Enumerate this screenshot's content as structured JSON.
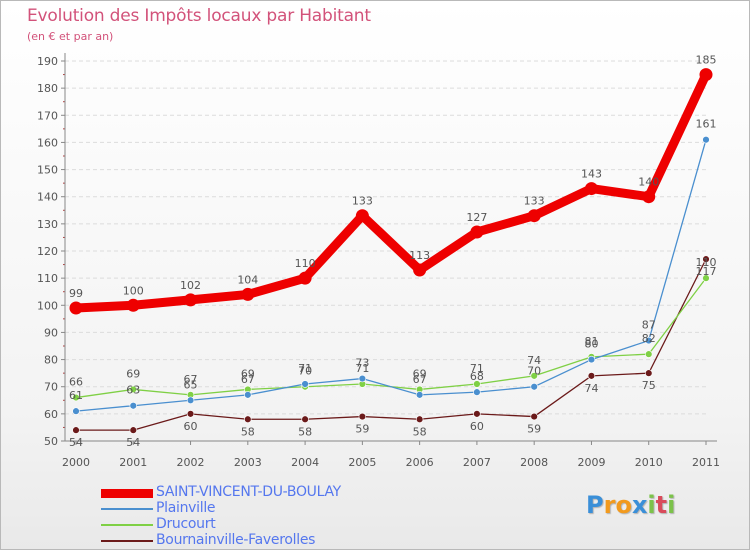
{
  "header": {
    "title": "Evolution des Impôts locaux par Habitant",
    "subtitle": "(en € et par an)"
  },
  "logo": {
    "letters": [
      "P",
      "r",
      "o",
      "x",
      "i",
      "t",
      "i"
    ],
    "colors": [
      "#3a8fd8",
      "#f29a1d",
      "#f29a1d",
      "#3a8fd8",
      "#7cc24a",
      "#d94b5b",
      "#7cc24a"
    ]
  },
  "chart_data": {
    "type": "line",
    "title": "Evolution des Impôts locaux par Habitant",
    "subtitle": "(en € et par an)",
    "categories": [
      "2000",
      "2001",
      "2002",
      "2003",
      "2004",
      "2005",
      "2006",
      "2007",
      "2008",
      "2009",
      "2010",
      "2011"
    ],
    "ylim": [
      50,
      190
    ],
    "yticks": [
      50,
      60,
      70,
      80,
      90,
      100,
      110,
      120,
      130,
      140,
      150,
      160,
      170,
      180,
      190
    ],
    "grid": "horizontal",
    "legend_position": "bottom-left",
    "series": [
      {
        "name": "SAINT-VINCENT-DU-BOULAY",
        "color": "#ee0000",
        "values": [
          99,
          100,
          102,
          104,
          110,
          133,
          113,
          127,
          133,
          143,
          140,
          185
        ],
        "labels": [
          "99",
          "100",
          "102",
          "104",
          "110",
          "133",
          "113",
          "127",
          "133",
          "143",
          "140",
          "185"
        ]
      },
      {
        "name": "Plainville",
        "color": "#4a8fcf",
        "values": [
          61,
          63,
          65,
          67,
          71,
          73,
          67,
          68,
          70,
          80,
          87,
          161
        ],
        "labels": [
          "61",
          "63",
          "65",
          "67",
          "71",
          "73",
          "67",
          "68",
          "70",
          "80",
          "87",
          "161"
        ]
      },
      {
        "name": "Drucourt",
        "color": "#7fd045",
        "values": [
          66,
          69,
          67,
          69,
          70,
          71,
          69,
          71,
          74,
          81,
          82,
          110
        ],
        "labels": [
          "66",
          "69",
          "67",
          "69",
          "70",
          "71",
          "69",
          "71",
          "74",
          "81",
          "82",
          "110"
        ]
      },
      {
        "name": "Bournainville-Faverolles",
        "color": "#6b1a1a",
        "values": [
          54,
          54,
          60,
          58,
          58,
          59,
          58,
          60,
          59,
          74,
          75,
          117
        ],
        "labels": [
          "54",
          "54",
          "60",
          "58",
          "58",
          "59",
          "58",
          "60",
          "59",
          "74",
          "75",
          "117"
        ]
      }
    ]
  }
}
